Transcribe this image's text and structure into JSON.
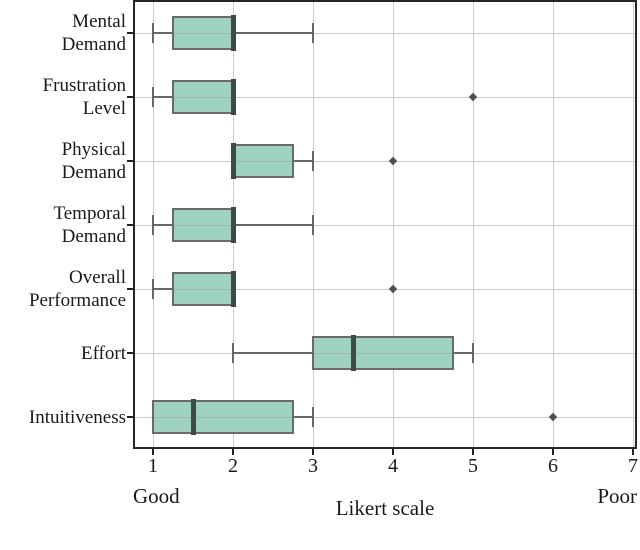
{
  "chart_data": {
    "type": "boxplot",
    "orientation": "horizontal",
    "title": "",
    "xlabel": "Likert scale",
    "x_left_caption": "Good",
    "x_right_caption": "Poor",
    "x_ticks": [
      "1",
      "2",
      "3",
      "4",
      "5",
      "6",
      "7"
    ],
    "xlim": [
      0.775,
      7.025
    ],
    "grid": true,
    "categories": [
      "Mental Demand",
      "Frustration Level",
      "Physical Demand",
      "Temporal Demand",
      "Overall Performance",
      "Effort",
      "Intuitiveness"
    ],
    "boxes": [
      {
        "label": "Mental\nDemand",
        "whislo": 1,
        "q1": 1.25,
        "med": 2,
        "q3": 2,
        "whishi": 3,
        "fliers": []
      },
      {
        "label": "Frustration\nLevel",
        "whislo": 1,
        "q1": 1.25,
        "med": 2,
        "q3": 2,
        "whishi": 2,
        "fliers": [
          5
        ]
      },
      {
        "label": "Physical\nDemand",
        "whislo": 2,
        "q1": 2,
        "med": 2,
        "q3": 2.75,
        "whishi": 3,
        "fliers": [
          4
        ]
      },
      {
        "label": "Temporal\nDemand",
        "whislo": 1,
        "q1": 1.25,
        "med": 2,
        "q3": 2,
        "whishi": 3,
        "fliers": []
      },
      {
        "label": "Overall\nPerformance",
        "whislo": 1,
        "q1": 1.25,
        "med": 2,
        "q3": 2,
        "whishi": 2,
        "fliers": [
          4
        ]
      },
      {
        "label": "Effort",
        "whislo": 2,
        "q1": 3,
        "med": 3.5,
        "q3": 4.75,
        "whishi": 5,
        "fliers": []
      },
      {
        "label": "Intuitiveness",
        "whislo": 1,
        "q1": 1,
        "med": 1.5,
        "q3": 2.75,
        "whishi": 3,
        "fliers": [
          6
        ]
      }
    ]
  },
  "colors": {
    "box_fill": "#9ed1c2",
    "box_edge": "#6a6a6a",
    "median": "#3c4b48",
    "whisker": "#666666",
    "cap": "#666666",
    "flier": "#4d4d4d",
    "grid": "#cccccc",
    "spine": "#262626",
    "tick": "#222222",
    "text": "#1a1a1a"
  }
}
